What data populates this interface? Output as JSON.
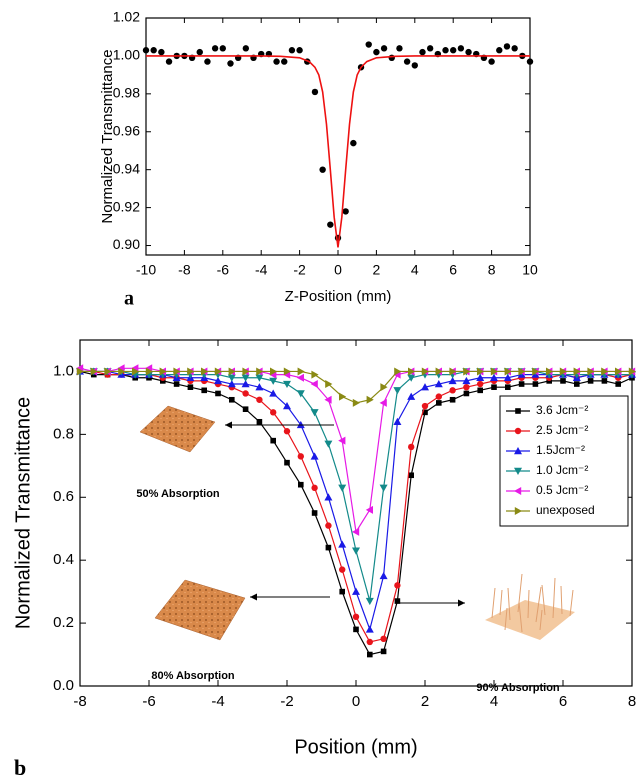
{
  "chart_data": [
    {
      "type": "scatter",
      "label": "a",
      "xlabel": "Z-Position (mm)",
      "ylabel": "Normalized Transmittance",
      "xlim": [
        -10,
        10
      ],
      "ylim": [
        0.895,
        1.02
      ],
      "xticks": [
        -10,
        -8,
        -6,
        -4,
        -2,
        0,
        2,
        4,
        6,
        8,
        10
      ],
      "yticks": [
        {
          "value": 0.9,
          "label": "0.90"
        },
        {
          "value": 0.92,
          "label": "0.92"
        },
        {
          "value": 0.94,
          "label": "0.94"
        },
        {
          "value": 0.96,
          "label": "0.96"
        },
        {
          "value": 0.98,
          "label": "0.98"
        },
        {
          "value": 1.0,
          "label": "1.00"
        },
        {
          "value": 1.02,
          "label": "1.02"
        }
      ],
      "series": [
        {
          "color": "#000000",
          "mode": "markers",
          "x": [
            -10,
            -9.6,
            -9.2,
            -8.8,
            -8.4,
            -8,
            -7.6,
            -7.2,
            -6.8,
            -6.4,
            -6,
            -5.6,
            -5.2,
            -4.8,
            -4.4,
            -4,
            -3.6,
            -3.2,
            -2.8,
            -2.4,
            -2,
            -1.6,
            -1.2,
            -0.8,
            -0.4,
            0,
            0.4,
            0.8,
            1.2,
            1.6,
            2,
            2.4,
            2.8,
            3.2,
            3.6,
            4,
            4.4,
            4.8,
            5.2,
            5.6,
            6,
            6.4,
            6.8,
            7.2,
            7.6,
            8,
            8.4,
            8.8,
            9.2,
            9.6,
            10
          ],
          "values": [
            1.003,
            1.003,
            1.002,
            0.997,
            1.0,
            1.0,
            0.999,
            1.002,
            0.997,
            1.004,
            1.004,
            0.996,
            0.999,
            1.004,
            0.999,
            1.001,
            1.001,
            0.997,
            0.997,
            1.003,
            1.003,
            0.997,
            0.981,
            0.94,
            0.911,
            0.904,
            0.918,
            0.954,
            0.994,
            1.006,
            1.002,
            1.004,
            0.999,
            1.004,
            0.997,
            0.995,
            1.002,
            1.004,
            1.001,
            1.003,
            1.003,
            1.004,
            1.002,
            1.001,
            0.999,
            0.997,
            1.003,
            1.005,
            1.004,
            1.0,
            0.997
          ]
        },
        {
          "color": "#ee1111",
          "mode": "line",
          "x": [
            -10,
            -4,
            -3,
            -2,
            -1.5,
            -1.2,
            -1,
            -0.8,
            -0.6,
            -0.4,
            -0.2,
            0,
            0.2,
            0.4,
            0.6,
            0.8,
            1,
            1.2,
            1.5,
            2,
            3,
            4,
            10
          ],
          "values": [
            1.0,
            1.0,
            0.9998,
            0.999,
            0.997,
            0.994,
            0.99,
            0.981,
            0.964,
            0.94,
            0.915,
            0.899,
            0.915,
            0.94,
            0.964,
            0.981,
            0.99,
            0.994,
            0.997,
            0.999,
            0.9998,
            1.0,
            1.0
          ]
        }
      ]
    },
    {
      "type": "line",
      "label": "b",
      "xlabel": "Position (mm)",
      "ylabel": "Normalized Transmittance",
      "xlim": [
        -8,
        8
      ],
      "ylim": [
        0,
        1.1
      ],
      "legend": "upper right",
      "xticks": [
        -8,
        -6,
        -4,
        -2,
        0,
        2,
        4,
        6,
        8
      ],
      "yticks": [
        {
          "value": 0,
          "label": "0.0"
        },
        0.2,
        0.4,
        0.6,
        0.8,
        {
          "value": 1,
          "label": "1.0"
        }
      ],
      "x": [
        -8,
        -7.6,
        -7.2,
        -6.8,
        -6.4,
        -6,
        -5.6,
        -5.2,
        -4.8,
        -4.4,
        -4,
        -3.6,
        -3.2,
        -2.8,
        -2.4,
        -2,
        -1.6,
        -1.2,
        -0.8,
        -0.4,
        0,
        0.4,
        0.8,
        1.2,
        1.6,
        2,
        2.4,
        2.8,
        3.2,
        3.6,
        4,
        4.4,
        4.8,
        5.2,
        5.6,
        6,
        6.4,
        6.8,
        7.2,
        7.6,
        8
      ],
      "annotations": [
        "50% Absorption",
        "80% Absorption",
        "90% Absorption"
      ],
      "series": [
        {
          "name": "3.6 Jcm⁻²",
          "color": "#000000",
          "marker": "square",
          "values": [
            1.0,
            0.99,
            0.99,
            0.99,
            0.98,
            0.98,
            0.97,
            0.96,
            0.95,
            0.94,
            0.93,
            0.91,
            0.88,
            0.84,
            0.78,
            0.71,
            0.64,
            0.55,
            0.44,
            0.3,
            0.18,
            0.1,
            0.11,
            0.27,
            0.67,
            0.87,
            0.9,
            0.91,
            0.93,
            0.94,
            0.95,
            0.95,
            0.96,
            0.96,
            0.97,
            0.97,
            0.96,
            0.97,
            0.97,
            0.96,
            0.98
          ]
        },
        {
          "name": "2.5 Jcm⁻²",
          "color": "#e8141b",
          "marker": "circle",
          "values": [
            1.0,
            1.0,
            0.99,
            0.99,
            0.99,
            0.99,
            0.98,
            0.98,
            0.97,
            0.97,
            0.96,
            0.95,
            0.93,
            0.91,
            0.87,
            0.81,
            0.73,
            0.63,
            0.51,
            0.37,
            0.22,
            0.14,
            0.15,
            0.32,
            0.76,
            0.89,
            0.92,
            0.94,
            0.95,
            0.96,
            0.97,
            0.97,
            0.98,
            0.98,
            0.98,
            0.99,
            0.98,
            0.99,
            0.99,
            0.98,
            0.99
          ]
        },
        {
          "name": "1.5Jcm⁻²",
          "color": "#1a1ae6",
          "marker": "up",
          "values": [
            1.0,
            1.0,
            1.0,
            0.99,
            0.99,
            0.99,
            0.99,
            0.98,
            0.98,
            0.98,
            0.97,
            0.96,
            0.96,
            0.95,
            0.93,
            0.89,
            0.83,
            0.73,
            0.6,
            0.45,
            0.3,
            0.18,
            0.35,
            0.84,
            0.92,
            0.95,
            0.96,
            0.97,
            0.97,
            0.98,
            0.98,
            0.98,
            0.99,
            0.99,
            0.99,
            0.99,
            0.98,
            0.99,
            0.99,
            0.99,
            0.99
          ]
        },
        {
          "name": "1.0  Jcm⁻²",
          "color": "#138a8a",
          "marker": "down",
          "values": [
            1.0,
            1.0,
            1.0,
            1.0,
            0.99,
            0.99,
            0.99,
            0.99,
            0.99,
            0.99,
            0.99,
            0.98,
            0.98,
            0.98,
            0.97,
            0.96,
            0.93,
            0.87,
            0.77,
            0.63,
            0.43,
            0.27,
            0.63,
            0.94,
            0.98,
            0.99,
            0.99,
            0.99,
            1.0,
            1.0,
            1.0,
            1.0,
            1.0,
            1.0,
            0.99,
            0.99,
            0.99,
            0.99,
            0.99,
            0.99,
            0.99
          ]
        },
        {
          "name": "0.5 Jcm⁻²",
          "color": "#e61ae6",
          "marker": "left",
          "values": [
            1.01,
            1.0,
            1.0,
            1.01,
            1.01,
            1.01,
            1.0,
            1.0,
            1.0,
            1.0,
            1.0,
            1.0,
            1.0,
            1.0,
            0.99,
            0.99,
            0.98,
            0.96,
            0.91,
            0.78,
            0.49,
            0.56,
            0.9,
            0.99,
            1.0,
            1.0,
            1.0,
            1.0,
            1.0,
            1.0,
            1.0,
            1.0,
            1.0,
            1.0,
            1.0,
            1.0,
            1.0,
            1.0,
            1.0,
            1.0,
            1.0
          ]
        },
        {
          "name": "unexposed",
          "color": "#8a8a14",
          "marker": "right",
          "values": [
            1.0,
            1.0,
            1.0,
            1.0,
            1.0,
            1.0,
            1.0,
            1.0,
            1.0,
            1.0,
            1.0,
            1.0,
            1.0,
            1.0,
            1.0,
            1.0,
            1.0,
            0.99,
            0.96,
            0.92,
            0.9,
            0.91,
            0.95,
            1.0,
            1.0,
            1.0,
            1.0,
            1.0,
            1.0,
            1.0,
            1.0,
            1.0,
            1.0,
            1.0,
            1.0,
            1.0,
            1.0,
            1.0,
            1.0,
            1.0,
            1.0
          ]
        }
      ]
    }
  ]
}
